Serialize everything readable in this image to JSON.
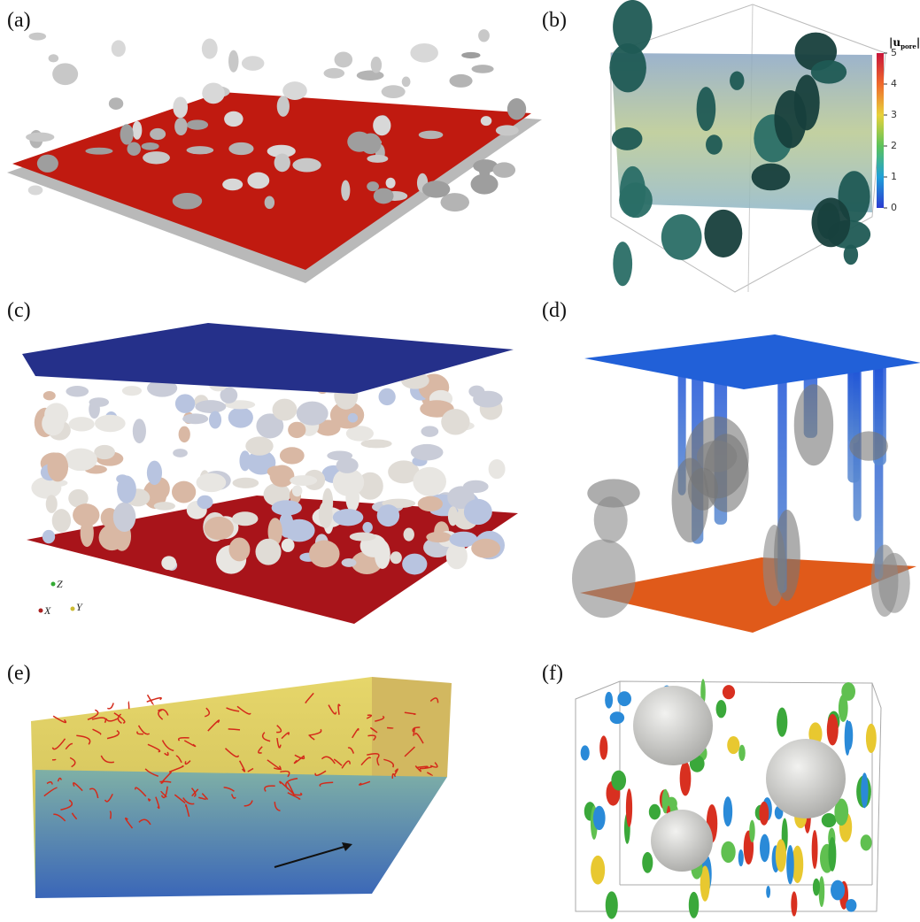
{
  "panels": [
    {
      "label": "(a)"
    },
    {
      "label": "(b)"
    },
    {
      "label": "(c)"
    },
    {
      "label": "(d)"
    },
    {
      "label": "(e)"
    },
    {
      "label": "(f)"
    }
  ],
  "colorbar": {
    "symbol": "u",
    "subscript": "pore",
    "ticks": [
      0,
      1,
      2,
      3,
      4,
      5
    ]
  },
  "axes_triad": {
    "z": "Z",
    "x": "X",
    "y": "Y"
  }
}
